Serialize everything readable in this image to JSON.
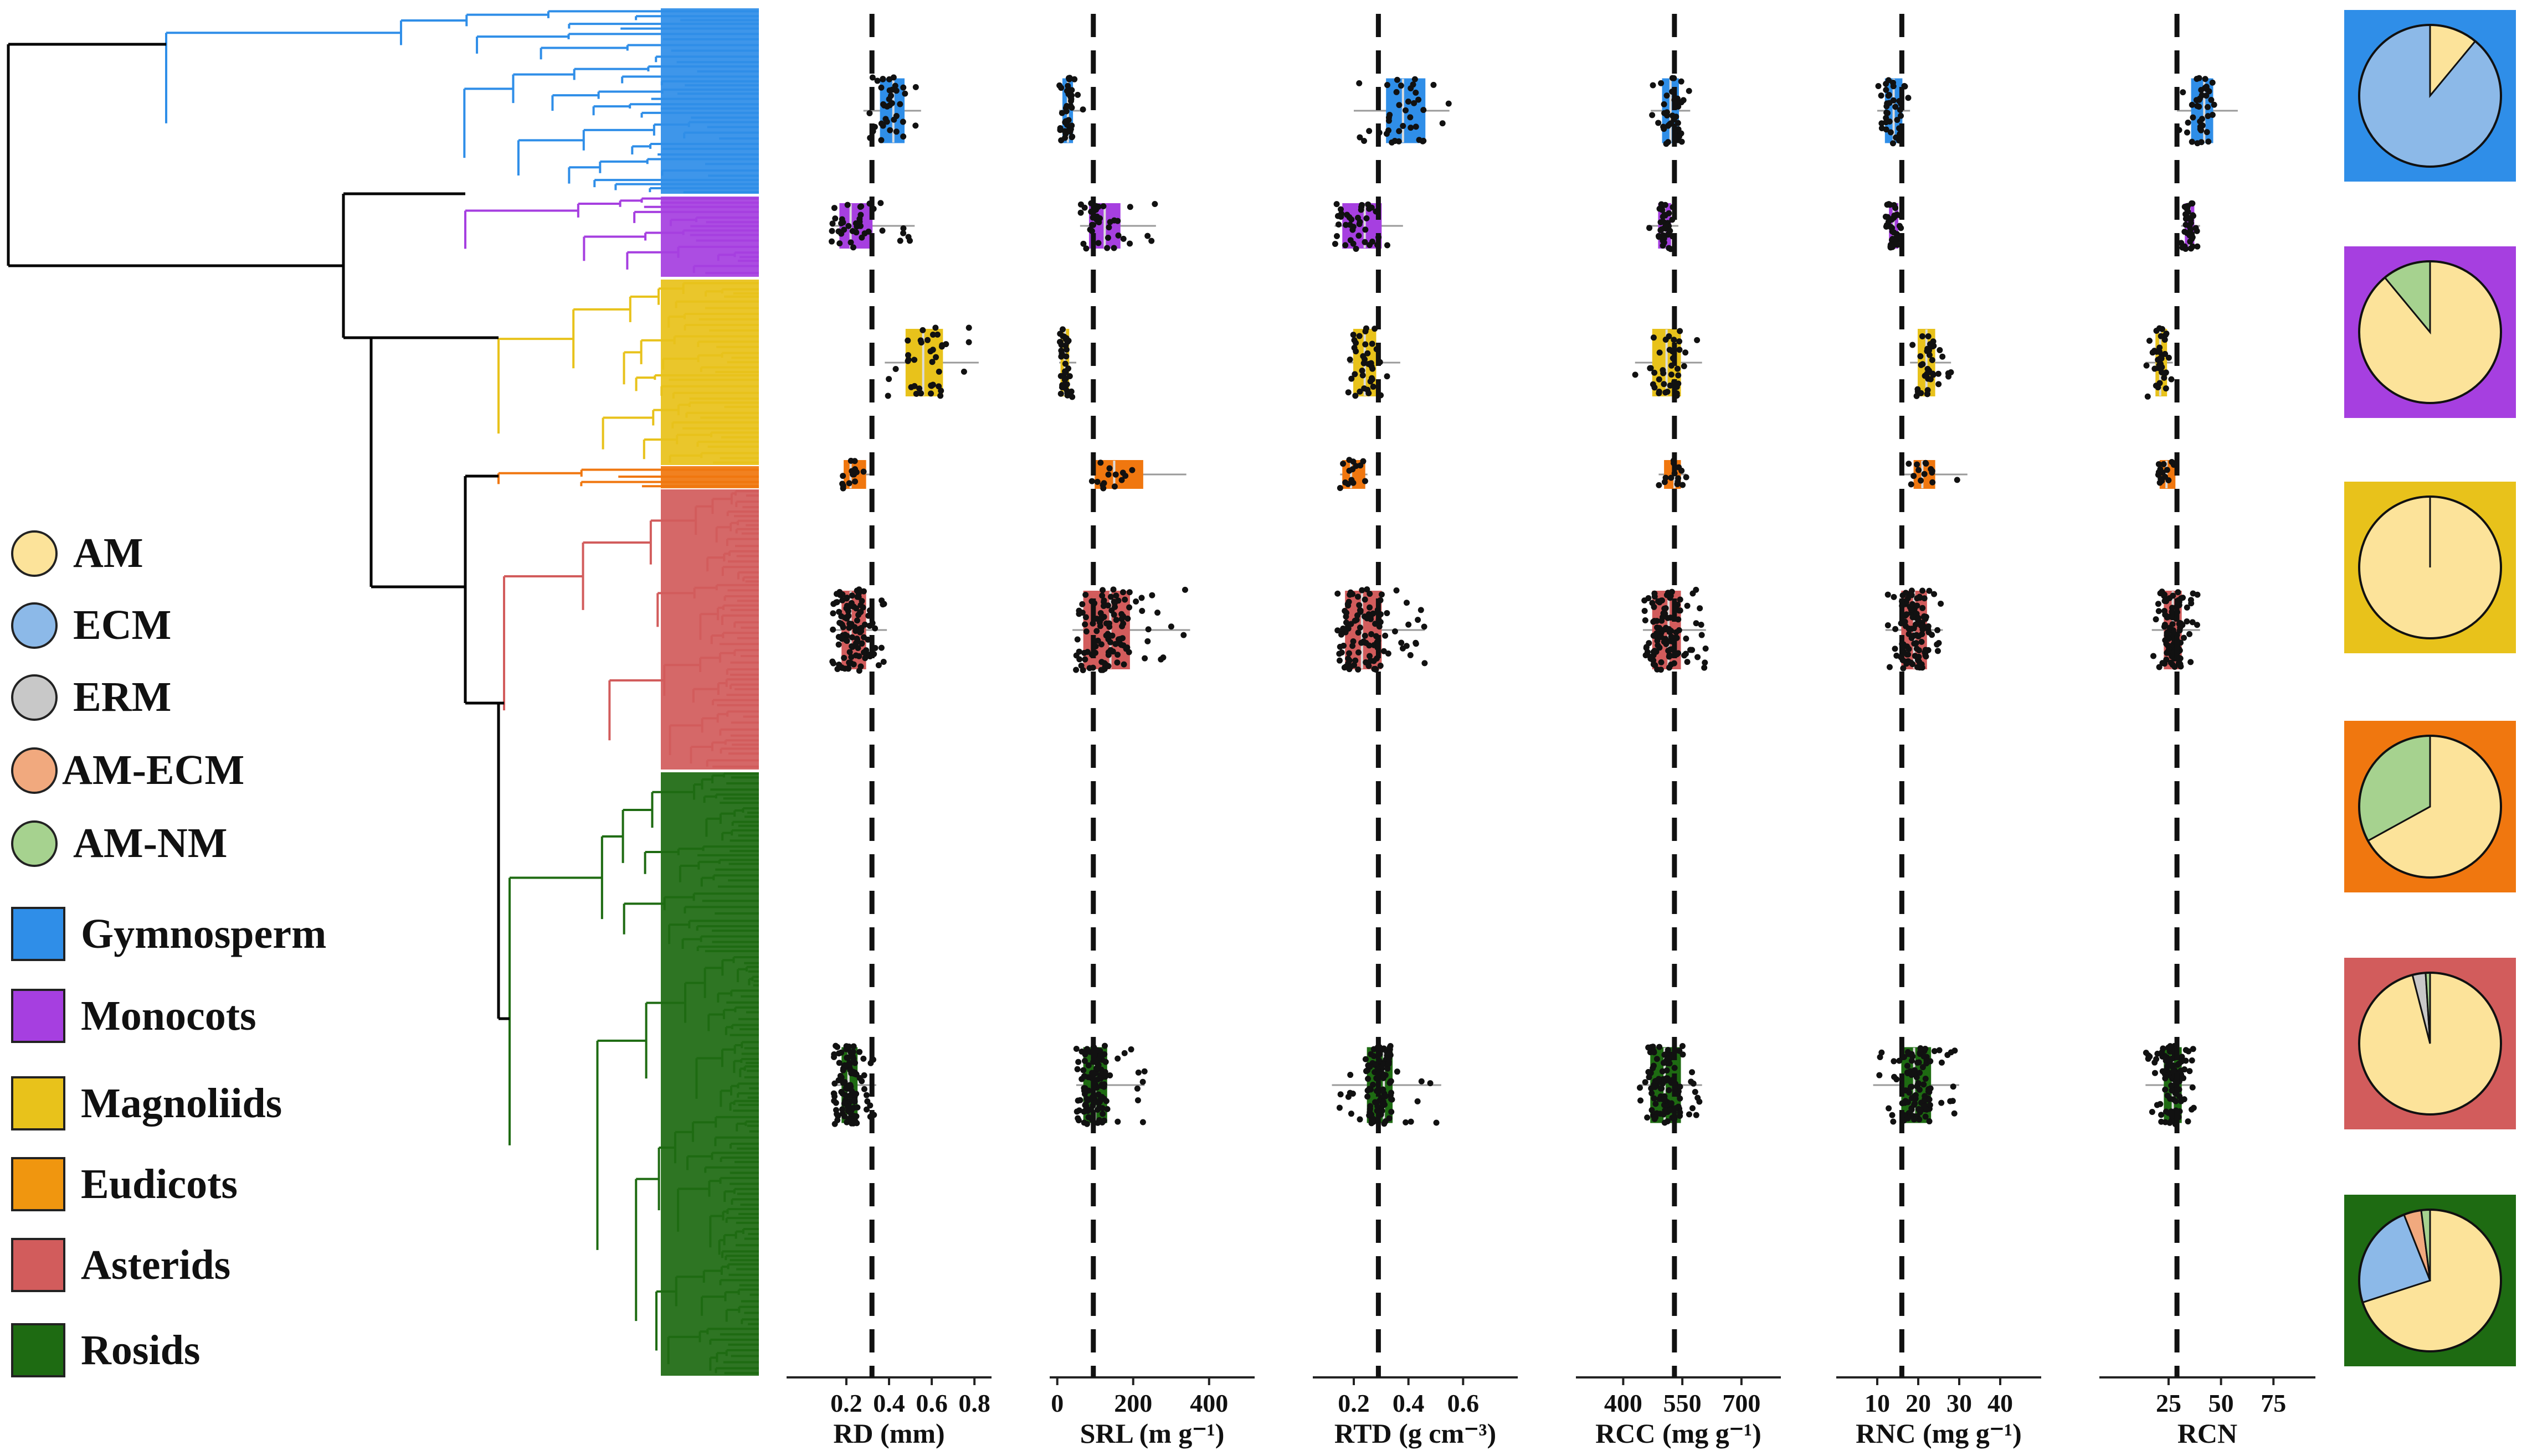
{
  "colors": {
    "Gymnosperm": "#2f8ee8",
    "Monocots": "#a63fe0",
    "Magnoliids": "#e8c21b",
    "Eudicots": "#f0770f",
    "Asterids": "#d25c5c",
    "Rosids": "#1e6b12",
    "AM": "#fce39a",
    "ECM": "#8cb9e8",
    "ERM": "#c8c8c8",
    "AM-ECM": "#f1a97e",
    "AM-NM": "#a6d28f"
  },
  "legend": {
    "mycorrhizal": [
      {
        "key": "AM",
        "label": "AM"
      },
      {
        "key": "ECM",
        "label": "ECM"
      },
      {
        "key": "ERM",
        "label": "ERM"
      },
      {
        "key": "AM-ECM",
        "label": "AM-ECM"
      },
      {
        "key": "AM-NM",
        "label": "AM-NM"
      }
    ],
    "clades": [
      {
        "key": "Gymnosperm",
        "label": "Gymnosperm"
      },
      {
        "key": "Monocots",
        "label": "Monocots"
      },
      {
        "key": "Magnoliids",
        "label": "Magnoliids"
      },
      {
        "key": "Eudicots",
        "label": "Eudicots"
      },
      {
        "key": "Asterids",
        "label": "Asterids"
      },
      {
        "key": "Rosids",
        "label": "Rosids"
      }
    ]
  },
  "chart_data": {
    "type": "boxplot",
    "groups": [
      "Gymnosperm",
      "Monocots",
      "Magnoliids",
      "Eudicots",
      "Asterids",
      "Rosids"
    ],
    "panels": [
      {
        "trait": "RD",
        "label": "RD (mm)",
        "xlim": [
          -0.08,
          0.88
        ],
        "ticks": [
          0.2,
          0.4,
          0.6,
          0.8
        ],
        "tick_labels": [
          "0.2",
          "0.4",
          "0.6",
          "0.8"
        ],
        "ref": 0.32,
        "boxes": [
          [
            0.28,
            0.36,
            0.42,
            0.47,
            0.55
          ],
          [
            0.13,
            0.17,
            0.22,
            0.32,
            0.52
          ],
          [
            0.38,
            0.48,
            0.56,
            0.65,
            0.82
          ],
          [
            0.18,
            0.19,
            0.22,
            0.29,
            0.33
          ],
          [
            0.13,
            0.18,
            0.22,
            0.29,
            0.39
          ],
          [
            0.14,
            0.18,
            0.21,
            0.25,
            0.34
          ]
        ]
      },
      {
        "trait": "SRL",
        "label": "SRL (m g⁻¹)",
        "xlim": [
          -20,
          520
        ],
        "ticks": [
          0,
          200,
          400
        ],
        "tick_labels": [
          "0",
          "200",
          "400"
        ],
        "ref": 95,
        "boxes": [
          [
            5,
            15,
            28,
            40,
            70
          ],
          [
            60,
            85,
            125,
            165,
            260
          ],
          [
            5,
            10,
            20,
            30,
            50
          ],
          [
            90,
            100,
            150,
            225,
            340
          ],
          [
            40,
            70,
            140,
            190,
            350
          ],
          [
            50,
            70,
            100,
            130,
            230
          ]
        ]
      },
      {
        "trait": "RTD",
        "label": "RTD (g cm⁻³)",
        "xlim": [
          0.05,
          0.8
        ],
        "ticks": [
          0.2,
          0.4,
          0.6
        ],
        "tick_labels": [
          "0.2",
          "0.4",
          "0.6"
        ],
        "ref": 0.29,
        "boxes": [
          [
            0.2,
            0.32,
            0.38,
            0.46,
            0.55
          ],
          [
            0.13,
            0.16,
            0.24,
            0.3,
            0.38
          ],
          [
            0.18,
            0.2,
            0.24,
            0.28,
            0.37
          ],
          [
            0.15,
            0.16,
            0.19,
            0.24,
            0.25
          ],
          [
            0.14,
            0.17,
            0.23,
            0.3,
            0.46
          ],
          [
            0.12,
            0.25,
            0.31,
            0.34,
            0.52
          ]
        ]
      },
      {
        "trait": "RCC",
        "label": "RCC (mg g⁻¹)",
        "xlim": [
          280,
          800
        ],
        "ticks": [
          400,
          550,
          700
        ],
        "tick_labels": [
          "400",
          "550",
          "700"
        ],
        "ref": 530,
        "boxes": [
          [
            470,
            500,
            520,
            540,
            570
          ],
          [
            460,
            490,
            505,
            520,
            540
          ],
          [
            430,
            475,
            510,
            545,
            600
          ],
          [
            490,
            505,
            530,
            545,
            560
          ],
          [
            450,
            475,
            515,
            545,
            610
          ],
          [
            440,
            470,
            505,
            545,
            600
          ]
        ]
      },
      {
        "trait": "RNC",
        "label": "RNC (mg g⁻¹)",
        "xlim": [
          0,
          50
        ],
        "ticks": [
          10,
          20,
          30,
          40
        ],
        "tick_labels": [
          "10",
          "20",
          "30",
          "40"
        ],
        "ref": 16,
        "boxes": [
          [
            10,
            12,
            14,
            16,
            18
          ],
          [
            12,
            13,
            14,
            15,
            16
          ],
          [
            18,
            20,
            22,
            24,
            28
          ],
          [
            16,
            19,
            21,
            24,
            32
          ],
          [
            12,
            16,
            19,
            22,
            26
          ],
          [
            9,
            16,
            19,
            23,
            30
          ]
        ]
      },
      {
        "trait": "RCN",
        "label": "RCN",
        "xlim": [
          -8,
          95
        ],
        "ticks": [
          25,
          50,
          75
        ],
        "tick_labels": [
          "25",
          "50",
          "75"
        ],
        "ref": 29,
        "boxes": [
          [
            29,
            36,
            42,
            46,
            58
          ],
          [
            31,
            33,
            35,
            37,
            40
          ],
          [
            14,
            19,
            21,
            24,
            27
          ],
          [
            20,
            21,
            24,
            28,
            30
          ],
          [
            17,
            23,
            27,
            31,
            40
          ],
          [
            14,
            23,
            27,
            31,
            37
          ]
        ]
      }
    ],
    "pies": {
      "Gymnosperm": {
        "AM": 0.11,
        "ECM": 0.89
      },
      "Monocots": {
        "AM": 0.89,
        "AM-NM": 0.11
      },
      "Magnoliids": {
        "AM": 1.0
      },
      "Eudicots": {
        "AM": 0.67,
        "AM-NM": 0.33
      },
      "Asterids": {
        "AM": 0.96,
        "ERM": 0.03,
        "AM-NM": 0.01
      },
      "Rosids": {
        "AM": 0.7,
        "ECM": 0.24,
        "AM-ECM": 0.04,
        "AM-NM": 0.02
      }
    }
  }
}
